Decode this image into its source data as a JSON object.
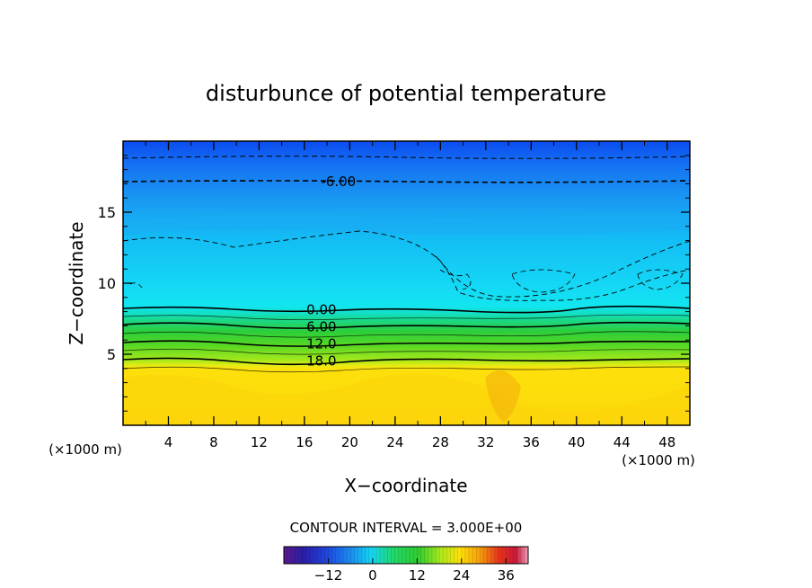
{
  "chart_data": {
    "type": "heatmap",
    "title": "disturbunce of potential temperature",
    "xlabel": "X−coordinate",
    "ylabel": "Z−coordinate",
    "x_unit_left": "(×1000 m)",
    "x_unit_right": "(×1000 m)",
    "xlim": [
      0,
      50
    ],
    "ylim": [
      0,
      20
    ],
    "x_ticks": [
      4,
      8,
      12,
      16,
      20,
      24,
      28,
      32,
      36,
      40,
      44,
      48
    ],
    "y_ticks": [
      5,
      10,
      15
    ],
    "contour_interval_text": "CONTOUR INTERVAL = 3.000E+00",
    "contour_labels": [
      {
        "text": "-6.00",
        "x": 19,
        "z": 17.2
      },
      {
        "text": "0.00",
        "x": 17.5,
        "z": 8.2
      },
      {
        "text": "6.00",
        "x": 17.5,
        "z": 7.0
      },
      {
        "text": "12.0",
        "x": 17.5,
        "z": 5.8
      },
      {
        "text": "18.0",
        "x": 17.5,
        "z": 4.6
      }
    ],
    "colorbar": {
      "min": -24,
      "max": 42,
      "ticks": [
        -12,
        0,
        12,
        24,
        36
      ],
      "tick_labels": [
        "−12",
        "0",
        "12",
        "24",
        "36"
      ]
    },
    "colors": {
      "top": "#0b4cf0",
      "upper": "#1b9df0",
      "mid": "#14ddf2",
      "green": "#2fcd2c",
      "lime": "#9ee81a",
      "yellow": "#fde10b",
      "orange": "#f5b60c"
    }
  }
}
